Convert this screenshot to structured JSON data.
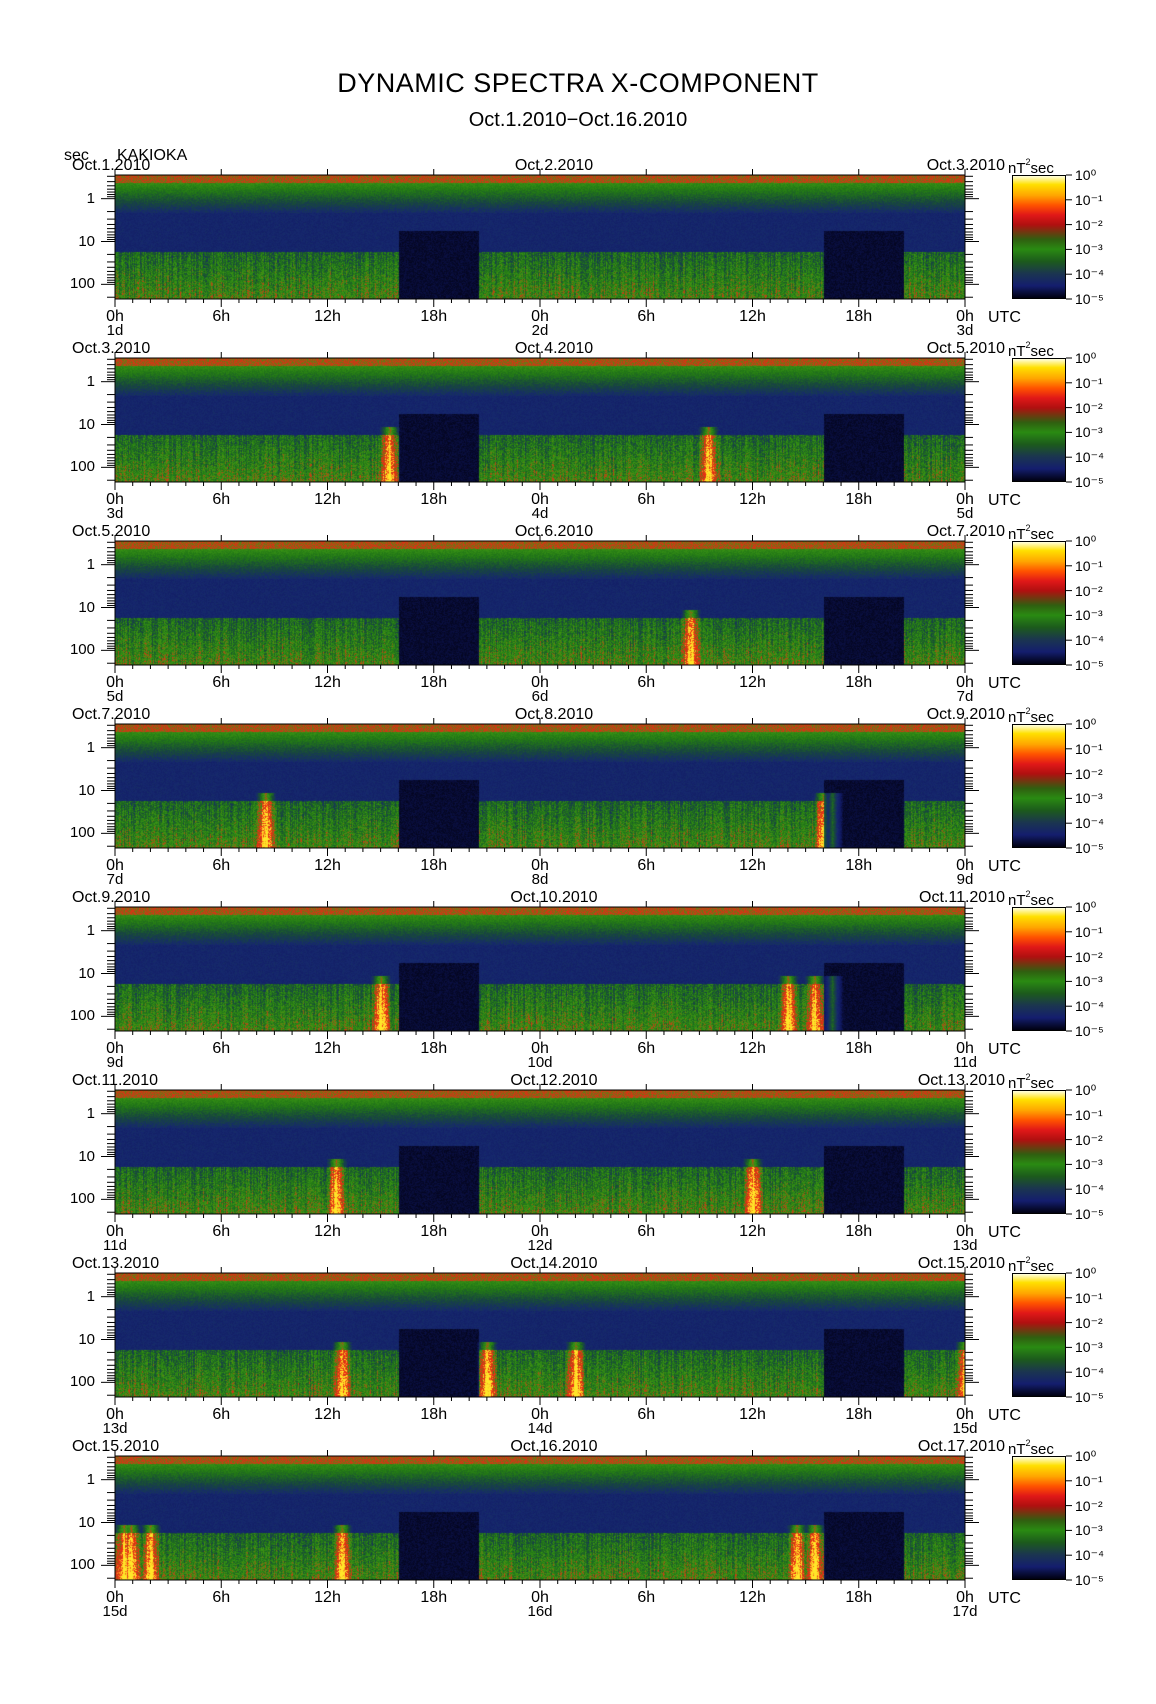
{
  "header": {
    "title": "DYNAMIC SPECTRA X-COMPONENT",
    "subtitle": "Oct.1.2010−Oct.16.2010",
    "y_unit": "sec",
    "station": "KAKIOKA"
  },
  "colors": {
    "background": "#ffffff",
    "quiet": "#141e6e",
    "low": "#2a8a12",
    "high": "#e01818",
    "max": "#ffe000"
  },
  "chart_data": {
    "type": "heatmap",
    "title": "DYNAMIC SPECTRA X-COMPONENT",
    "subtitle": "Oct.1.2010−Oct.16.2010",
    "ylabel": "sec",
    "y_ticks": [
      "1",
      "10",
      "100"
    ],
    "y_range_sec": [
      0.3,
      200
    ],
    "x_ticks": [
      "0h",
      "6h",
      "12h",
      "18h",
      "0h",
      "6h",
      "12h",
      "18h",
      "0h"
    ],
    "x_unit": "UTC",
    "power_unit": "nT²sec",
    "colorbar_ticks": [
      "10⁰",
      "10⁻¹",
      "10⁻²",
      "10⁻³",
      "10⁻⁴",
      "10⁻⁵"
    ],
    "colorbar_range_exp": [
      -5,
      0
    ],
    "panels": [
      {
        "date_left": "Oct.1.2010",
        "date_mid": "Oct.2.2010",
        "date_right": "Oct.3.2010",
        "day_start": "1d",
        "day_mid": "2d",
        "day_end": "3d",
        "events_hour": []
      },
      {
        "date_left": "Oct.3.2010",
        "date_mid": "Oct.4.2010",
        "date_right": "Oct.5.2010",
        "day_start": "3d",
        "day_mid": "4d",
        "day_end": "5d",
        "events_hour": [
          15.5,
          33.5
        ]
      },
      {
        "date_left": "Oct.5.2010",
        "date_mid": "Oct.6.2010",
        "date_right": "Oct.7.2010",
        "day_start": "5d",
        "day_mid": "6d",
        "day_end": "7d",
        "events_hour": [
          32.5
        ]
      },
      {
        "date_left": "Oct.7.2010",
        "date_mid": "Oct.8.2010",
        "date_right": "Oct.9.2010",
        "day_start": "7d",
        "day_mid": "8d",
        "day_end": "9d",
        "events_hour": [
          8.5,
          40.0,
          40.5
        ]
      },
      {
        "date_left": "Oct.9.2010",
        "date_mid": "Oct.10.2010",
        "date_right": "Oct.11.2010",
        "day_start": "9d",
        "day_mid": "10d",
        "day_end": "11d",
        "events_hour": [
          15.0,
          38.0,
          39.5,
          40.5
        ]
      },
      {
        "date_left": "Oct.11.2010",
        "date_mid": "Oct.12.2010",
        "date_right": "Oct.13.2010",
        "day_start": "11d",
        "day_mid": "12d",
        "day_end": "13d",
        "events_hour": [
          12.5,
          36.0
        ]
      },
      {
        "date_left": "Oct.13.2010",
        "date_mid": "Oct.14.2010",
        "date_right": "Oct.15.2010",
        "day_start": "13d",
        "day_mid": "14d",
        "day_end": "15d",
        "events_hour": [
          12.8,
          21.0,
          26.0,
          48.0
        ]
      },
      {
        "date_left": "Oct.15.2010",
        "date_mid": "Oct.16.2010",
        "date_right": "Oct.17.2010",
        "day_start": "15d",
        "day_mid": "16d",
        "day_end": "17d",
        "events_hour": [
          0.5,
          0.9,
          2.0,
          12.8,
          38.5,
          39.5
        ]
      }
    ]
  }
}
